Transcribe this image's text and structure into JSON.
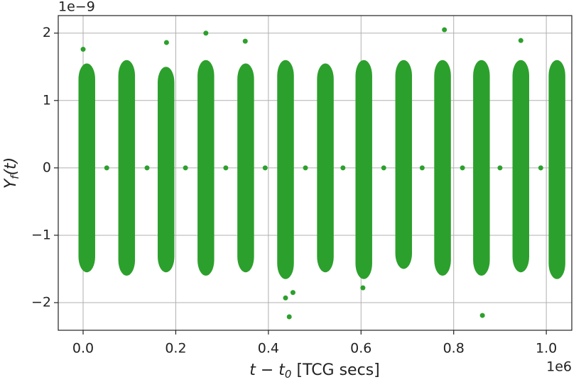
{
  "chart_data": {
    "type": "scatter",
    "color": "#2ca02c",
    "grid": true,
    "y_offset_label": "1e−9",
    "x_offset_label": "1e6",
    "xlabel": {
      "main": "t − t",
      "sub": "0",
      "rest": " [TCG secs]"
    },
    "ylabel": {
      "main": "Y",
      "sub": "f",
      "rest": "(t)"
    },
    "xlim": [
      -0.0537,
      1.055
    ],
    "ylim": [
      -2.41,
      2.26
    ],
    "xticks": [
      {
        "value": 0,
        "label": "0.0"
      },
      0.2,
      0.4,
      0.6,
      0.8,
      {
        "value": 1,
        "label": "1.0"
      }
    ],
    "yticks": [
      {
        "value": -2,
        "label": "−2"
      },
      {
        "value": -1,
        "label": "−1"
      },
      0,
      1,
      2
    ],
    "clusters": [
      {
        "x": [
          -0.01,
          0.026
        ],
        "y": [
          -1.55,
          1.55
        ]
      },
      {
        "x": [
          0.076,
          0.112
        ],
        "y": [
          -1.6,
          1.6
        ]
      },
      {
        "x": [
          0.161,
          0.197
        ],
        "y": [
          -1.55,
          1.5
        ]
      },
      {
        "x": [
          0.247,
          0.283
        ],
        "y": [
          -1.6,
          1.6
        ]
      },
      {
        "x": [
          0.333,
          0.369
        ],
        "y": [
          -1.55,
          1.55
        ]
      },
      {
        "x": [
          0.419,
          0.455
        ],
        "y": [
          -1.65,
          1.6
        ]
      },
      {
        "x": [
          0.505,
          0.541
        ],
        "y": [
          -1.55,
          1.55
        ]
      },
      {
        "x": [
          0.588,
          0.624
        ],
        "y": [
          -1.65,
          1.6
        ]
      },
      {
        "x": [
          0.674,
          0.71
        ],
        "y": [
          -1.5,
          1.6
        ]
      },
      {
        "x": [
          0.758,
          0.794
        ],
        "y": [
          -1.6,
          1.6
        ]
      },
      {
        "x": [
          0.842,
          0.878
        ],
        "y": [
          -1.6,
          1.6
        ]
      },
      {
        "x": [
          0.927,
          0.963
        ],
        "y": [
          -1.55,
          1.6
        ]
      },
      {
        "x": [
          1.005,
          1.041
        ],
        "y": [
          -1.65,
          1.6
        ]
      }
    ],
    "x": [
      0.051,
      0.138,
      0.221,
      0.308,
      0.393,
      0.48,
      0.561,
      0.649,
      0.732,
      0.819,
      0.9,
      0.988,
      0.0,
      0.265,
      0.437,
      0.445,
      0.453,
      0.78,
      0.862,
      0.945,
      0.18,
      0.35,
      0.604
    ],
    "values": [
      0,
      0,
      0,
      0,
      0,
      0,
      0,
      0,
      0,
      0,
      0,
      0,
      1.76,
      2.0,
      -1.93,
      -2.21,
      -1.85,
      2.05,
      -2.19,
      1.89,
      1.86,
      1.88,
      -1.78
    ]
  }
}
